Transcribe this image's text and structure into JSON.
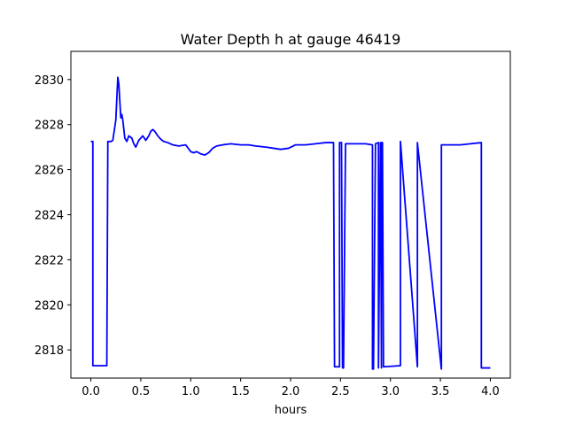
{
  "chart_data": {
    "type": "line",
    "title": "Water Depth h at gauge 46419",
    "xlabel": "hours",
    "ylabel": "",
    "xlim": [
      -0.2,
      4.2
    ],
    "ylim": [
      2816.75,
      2831.25
    ],
    "xticks": [
      0.0,
      0.5,
      1.0,
      1.5,
      2.0,
      2.5,
      3.0,
      3.5,
      4.0
    ],
    "xtick_labels": [
      "0.0",
      "0.5",
      "1.0",
      "1.5",
      "2.0",
      "2.5",
      "3.0",
      "3.5",
      "4.0"
    ],
    "yticks": [
      2818,
      2820,
      2822,
      2824,
      2826,
      2828,
      2830
    ],
    "ytick_labels": [
      "2818",
      "2820",
      "2822",
      "2824",
      "2826",
      "2828",
      "2830"
    ],
    "grid": false,
    "series": [
      {
        "name": "",
        "color": "#0000ff",
        "x": [
          0.0,
          0.02,
          0.02,
          0.16,
          0.17,
          0.2,
          0.22,
          0.25,
          0.27,
          0.28,
          0.3,
          0.31,
          0.32,
          0.34,
          0.36,
          0.38,
          0.41,
          0.43,
          0.45,
          0.48,
          0.52,
          0.55,
          0.58,
          0.6,
          0.62,
          0.64,
          0.67,
          0.7,
          0.73,
          0.77,
          0.82,
          0.88,
          0.95,
          1.0,
          1.03,
          1.06,
          1.1,
          1.14,
          1.18,
          1.22,
          1.26,
          1.32,
          1.4,
          1.5,
          1.58,
          1.65,
          1.75,
          1.83,
          1.9,
          1.98,
          2.05,
          2.15,
          2.25,
          2.35,
          2.43,
          2.44,
          2.45,
          2.49,
          2.49,
          2.5,
          2.51,
          2.52,
          2.53,
          2.55,
          2.65,
          2.75,
          2.82,
          2.82,
          2.83,
          2.85,
          2.88,
          2.88,
          2.9,
          2.91,
          2.91,
          2.92,
          2.93,
          3.1,
          3.1,
          3.27,
          3.27,
          3.51,
          3.51,
          3.6,
          3.7,
          3.8,
          3.91,
          3.91,
          4.0
        ],
        "y": [
          2827.25,
          2827.25,
          2817.3,
          2817.3,
          2827.25,
          2827.25,
          2827.3,
          2828.2,
          2830.1,
          2829.8,
          2828.3,
          2828.45,
          2828.2,
          2827.4,
          2827.25,
          2827.5,
          2827.4,
          2827.15,
          2827.0,
          2827.3,
          2827.5,
          2827.3,
          2827.5,
          2827.7,
          2827.78,
          2827.7,
          2827.5,
          2827.35,
          2827.25,
          2827.2,
          2827.1,
          2827.05,
          2827.1,
          2826.8,
          2826.75,
          2826.8,
          2826.7,
          2826.65,
          2826.75,
          2826.95,
          2827.05,
          2827.1,
          2827.15,
          2827.1,
          2827.1,
          2827.05,
          2827.0,
          2826.95,
          2826.9,
          2826.95,
          2827.1,
          2827.1,
          2827.15,
          2827.2,
          2827.2,
          2817.25,
          2817.25,
          2817.25,
          2827.2,
          2827.2,
          2827.2,
          2817.2,
          2817.2,
          2827.15,
          2827.15,
          2827.15,
          2827.1,
          2817.15,
          2817.15,
          2827.15,
          2827.2,
          2817.2,
          2827.2,
          2817.2,
          2827.2,
          2827.2,
          2817.25,
          2817.3,
          2827.25,
          2817.25,
          2827.2,
          2817.15,
          2827.1,
          2827.1,
          2827.1,
          2827.15,
          2827.2,
          2817.2,
          2817.2
        ]
      }
    ]
  }
}
